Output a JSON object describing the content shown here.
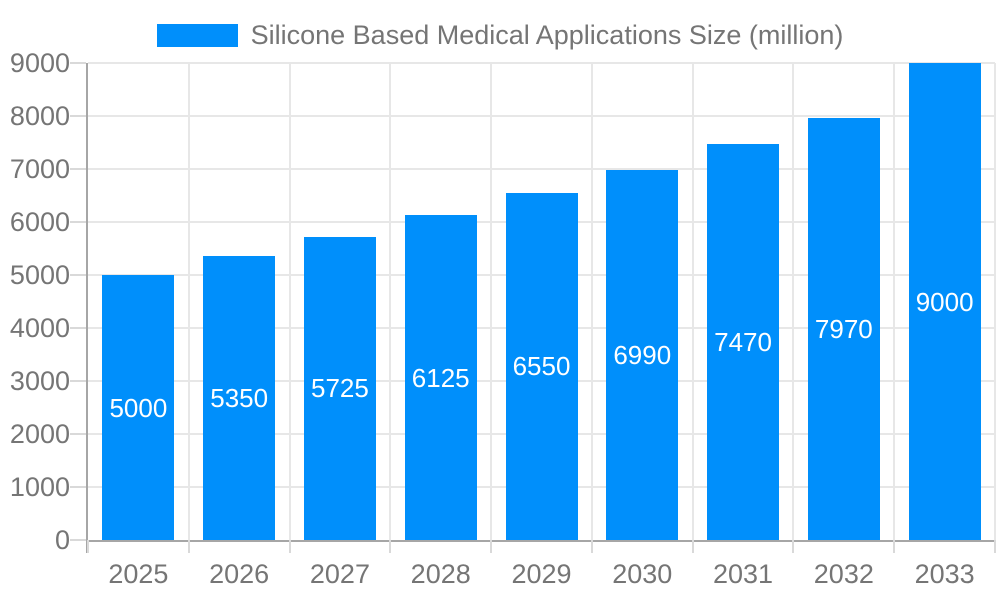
{
  "legend": {
    "label": "Silicone Based Medical Applications Size (million)"
  },
  "colors": {
    "bar": "#008FFB",
    "axis_text": "#757575",
    "bar_label_text": "#FFFFFF",
    "grid_line": "#E7E7E7",
    "tick_line": "#D9D9D9",
    "axis_line": "#A6A6A6",
    "background": "#FFFFFF"
  },
  "chart_data": {
    "type": "bar",
    "title": "Silicone Based Medical Applications Size (million)",
    "categories": [
      "2025",
      "2026",
      "2027",
      "2028",
      "2029",
      "2030",
      "2031",
      "2032",
      "2033"
    ],
    "values": [
      5000,
      5350,
      5725,
      6125,
      6550,
      6990,
      7470,
      7970,
      9000
    ],
    "xlabel": "",
    "ylabel": "",
    "ylim": [
      0,
      9000
    ],
    "ytick_step": 1000,
    "ytick_labels": [
      "0",
      "1000",
      "2000",
      "3000",
      "4000",
      "5000",
      "6000",
      "7000",
      "8000",
      "9000"
    ],
    "grid": true,
    "legend_position": "top-center",
    "value_labels": "inside-center"
  }
}
